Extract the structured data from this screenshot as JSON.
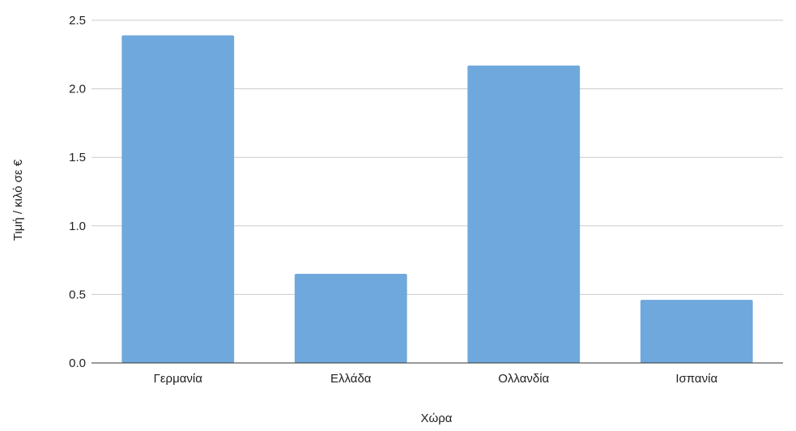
{
  "chart_data": {
    "type": "bar",
    "title": "",
    "xlabel": "Χώρα",
    "ylabel": "Τιμή / κιλό σε €",
    "categories": [
      "Γερμανία",
      "Ελλάδα",
      "Ολλανδία",
      "Ισπανία"
    ],
    "values": [
      2.39,
      0.65,
      2.17,
      0.46
    ],
    "ylim": [
      0,
      2.5
    ],
    "yticks": [
      "0.0",
      "0.5",
      "1.0",
      "1.5",
      "2.0",
      "2.5"
    ],
    "grid": true,
    "legend": "none",
    "colors": {
      "bar": "#6fa8dc",
      "grid": "#cccccc",
      "axis": "#333333"
    }
  }
}
